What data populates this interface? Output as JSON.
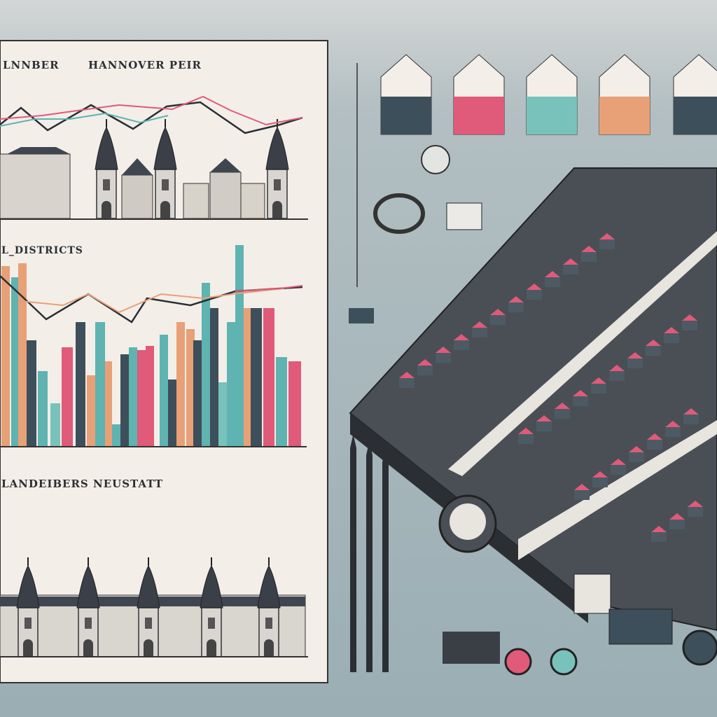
{
  "panel": {
    "header_left": "LNNBER",
    "header_title": "HANNOVER PEIR",
    "section_2_title": "L_DISTRICTS",
    "section_3_title": "LANDEIBERS NEUSTATT"
  }
}
